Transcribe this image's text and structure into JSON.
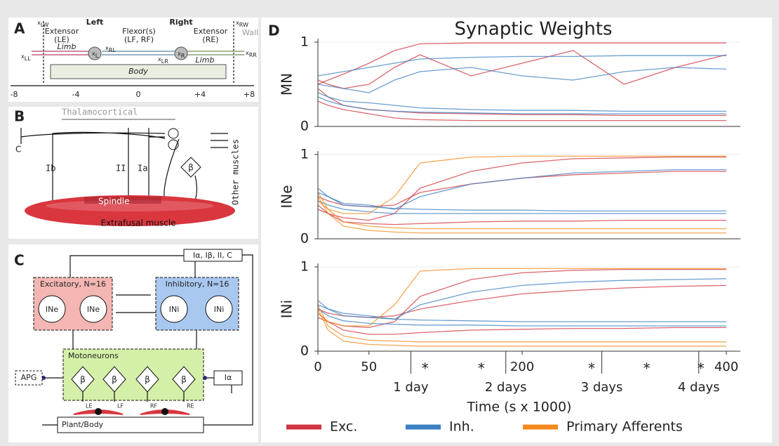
{
  "panels": {
    "A": {
      "label": "A",
      "left": "Left",
      "right": "Right",
      "left_muscle": [
        "Extensor",
        "(LE)"
      ],
      "flexor": [
        "Flexor(s)",
        "(LF, RF)"
      ],
      "right_muscle": [
        "Extensor",
        "(RE)"
      ],
      "wall": "Wall",
      "limb": "Limb",
      "body": "Body",
      "symbol": "x",
      "subscripts": [
        "LW",
        "RW",
        "LL",
        "L",
        "RL",
        "LR",
        "R",
        "RR"
      ],
      "axis": [
        "-8",
        "-4",
        "0",
        "+4",
        "+8"
      ]
    },
    "B": {
      "label": "B",
      "thalamocortical": "Thalamocortical",
      "c": "C",
      "ib": "Ib",
      "ii": "II",
      "ia": "Ia",
      "beta": "β",
      "other": "Other muscles",
      "spindle": "Spindle",
      "extrafusal": "Extrafusal muscle"
    },
    "C": {
      "label": "C",
      "inputs": "Iα, Iβ, II, C",
      "excitatory": "Excitatory, N=16",
      "inhibitory": "Inhibitory, N=16",
      "ine": "INe",
      "ini": "INi",
      "motoneurons": "Motoneurons",
      "apg": "APG",
      "ia": "Iα",
      "beta": "β",
      "muscles": [
        "LE",
        "LF",
        "RF",
        "RE"
      ],
      "plant": "Plant/Body"
    },
    "D": {
      "label": "D"
    }
  },
  "chart_data": [
    {
      "type": "line",
      "title": "Synaptic Weights",
      "ylabel": "MN",
      "xlim": [
        0,
        400
      ],
      "ylim": [
        0,
        1
      ],
      "yticks": [
        0,
        1
      ],
      "x": [
        0,
        10,
        25,
        50,
        75,
        100,
        150,
        200,
        250,
        300,
        350,
        400
      ],
      "series": [
        {
          "name": "Exc.",
          "color": "#d0343f",
          "values": [
            0.45,
            0.35,
            0.25,
            0.2,
            0.18,
            0.16,
            0.15,
            0.14,
            0.14,
            0.13,
            0.13,
            0.13
          ]
        },
        {
          "name": "Exc.",
          "color": "#d0343f",
          "values": [
            0.5,
            0.55,
            0.62,
            0.75,
            0.9,
            0.98,
            0.99,
            0.99,
            0.99,
            0.99,
            0.99,
            0.99
          ]
        },
        {
          "name": "Exc.",
          "color": "#d0343f",
          "values": [
            0.3,
            0.25,
            0.2,
            0.15,
            0.1,
            0.08,
            0.07,
            0.07,
            0.07,
            0.07,
            0.07,
            0.07
          ]
        },
        {
          "name": "Exc.",
          "color": "#d0343f",
          "values": [
            0.55,
            0.5,
            0.45,
            0.5,
            0.7,
            0.85,
            0.6,
            0.75,
            0.9,
            0.5,
            0.7,
            0.85
          ]
        },
        {
          "name": "Inh.",
          "color": "#3a7fc1",
          "values": [
            0.4,
            0.35,
            0.3,
            0.28,
            0.25,
            0.22,
            0.2,
            0.19,
            0.19,
            0.18,
            0.18,
            0.18
          ]
        },
        {
          "name": "Inh.",
          "color": "#3a7fc1",
          "values": [
            0.6,
            0.62,
            0.65,
            0.7,
            0.75,
            0.8,
            0.82,
            0.83,
            0.83,
            0.84,
            0.84,
            0.84
          ]
        },
        {
          "name": "Inh.",
          "color": "#3a7fc1",
          "values": [
            0.35,
            0.3,
            0.25,
            0.2,
            0.18,
            0.17,
            0.16,
            0.15,
            0.15,
            0.15,
            0.15,
            0.15
          ]
        },
        {
          "name": "Inh.",
          "color": "#3a7fc1",
          "values": [
            0.5,
            0.48,
            0.45,
            0.4,
            0.55,
            0.65,
            0.7,
            0.6,
            0.55,
            0.65,
            0.7,
            0.68
          ]
        }
      ]
    },
    {
      "type": "line",
      "ylabel": "INe",
      "xlim": [
        0,
        400
      ],
      "ylim": [
        0,
        1
      ],
      "yticks": [
        0,
        1
      ],
      "x": [
        0,
        10,
        25,
        50,
        75,
        100,
        150,
        200,
        250,
        300,
        350,
        400
      ],
      "series": [
        {
          "name": "Exc.",
          "color": "#d0343f",
          "values": [
            0.35,
            0.3,
            0.25,
            0.22,
            0.3,
            0.6,
            0.8,
            0.9,
            0.95,
            0.96,
            0.97,
            0.97
          ]
        },
        {
          "name": "Exc.",
          "color": "#d0343f",
          "values": [
            0.4,
            0.3,
            0.2,
            0.18,
            0.17,
            0.18,
            0.2,
            0.21,
            0.21,
            0.22,
            0.22,
            0.22
          ]
        },
        {
          "name": "Exc.",
          "color": "#d0343f",
          "values": [
            0.5,
            0.45,
            0.4,
            0.38,
            0.4,
            0.55,
            0.65,
            0.72,
            0.76,
            0.78,
            0.8,
            0.8
          ]
        },
        {
          "name": "Inh.",
          "color": "#3a7fc1",
          "values": [
            0.55,
            0.5,
            0.42,
            0.4,
            0.35,
            0.5,
            0.65,
            0.72,
            0.78,
            0.8,
            0.82,
            0.82
          ]
        },
        {
          "name": "Inh.",
          "color": "#3a7fc1",
          "values": [
            0.6,
            0.5,
            0.4,
            0.38,
            0.36,
            0.35,
            0.34,
            0.34,
            0.33,
            0.33,
            0.33,
            0.33
          ]
        },
        {
          "name": "Inh.",
          "color": "#3a7fc1",
          "values": [
            0.45,
            0.4,
            0.35,
            0.32,
            0.3,
            0.3,
            0.3,
            0.3,
            0.3,
            0.3,
            0.3,
            0.3
          ]
        },
        {
          "name": "Primary Afferents",
          "color": "#f28a1e",
          "values": [
            0.55,
            0.35,
            0.2,
            0.15,
            0.13,
            0.12,
            0.12,
            0.12,
            0.12,
            0.12,
            0.12,
            0.12
          ]
        },
        {
          "name": "Primary Afferents",
          "color": "#f28a1e",
          "values": [
            0.5,
            0.3,
            0.15,
            0.1,
            0.08,
            0.07,
            0.07,
            0.07,
            0.07,
            0.07,
            0.07,
            0.07
          ]
        },
        {
          "name": "Primary Afferents",
          "color": "#f28a1e",
          "values": [
            0.45,
            0.35,
            0.3,
            0.3,
            0.5,
            0.9,
            0.97,
            0.98,
            0.98,
            0.98,
            0.98,
            0.98
          ]
        }
      ]
    },
    {
      "type": "line",
      "ylabel": "INi",
      "xlabel": "Time (s x 1000)",
      "xlim": [
        0,
        400
      ],
      "ylim": [
        0,
        1
      ],
      "yticks": [
        0,
        1
      ],
      "xticks": [
        0,
        50,
        200,
        400
      ],
      "day_ticks": [
        {
          "value": 91,
          "label": "1 day"
        },
        {
          "value": 184,
          "label": "2 days"
        },
        {
          "value": 278,
          "label": "3 days"
        },
        {
          "value": 373,
          "label": "4 days"
        }
      ],
      "annotations": [
        {
          "x": 105,
          "text": "*"
        },
        {
          "x": 160,
          "text": "*"
        },
        {
          "x": 268,
          "text": "*"
        },
        {
          "x": 322,
          "text": "*"
        },
        {
          "x": 375,
          "text": "*"
        }
      ],
      "legend": "bottom",
      "x": [
        0,
        10,
        25,
        50,
        75,
        100,
        150,
        200,
        250,
        300,
        350,
        400
      ],
      "series": [
        {
          "name": "Exc.",
          "color": "#d0343f",
          "values": [
            0.4,
            0.35,
            0.3,
            0.28,
            0.35,
            0.65,
            0.85,
            0.93,
            0.96,
            0.97,
            0.97,
            0.97
          ]
        },
        {
          "name": "Exc.",
          "color": "#d0343f",
          "values": [
            0.45,
            0.35,
            0.25,
            0.2,
            0.2,
            0.22,
            0.25,
            0.26,
            0.27,
            0.27,
            0.28,
            0.28
          ]
        },
        {
          "name": "Exc.",
          "color": "#d0343f",
          "values": [
            0.5,
            0.45,
            0.42,
            0.4,
            0.42,
            0.5,
            0.6,
            0.68,
            0.72,
            0.75,
            0.77,
            0.78
          ]
        },
        {
          "name": "Inh.",
          "color": "#3a7fc1",
          "values": [
            0.55,
            0.5,
            0.45,
            0.42,
            0.38,
            0.55,
            0.7,
            0.78,
            0.82,
            0.84,
            0.85,
            0.86
          ]
        },
        {
          "name": "Inh.",
          "color": "#3a7fc1",
          "values": [
            0.6,
            0.5,
            0.42,
            0.4,
            0.38,
            0.37,
            0.36,
            0.35,
            0.35,
            0.35,
            0.35,
            0.35
          ]
        },
        {
          "name": "Inh.",
          "color": "#3a7fc1",
          "values": [
            0.5,
            0.42,
            0.36,
            0.33,
            0.32,
            0.31,
            0.31,
            0.3,
            0.3,
            0.3,
            0.3,
            0.3
          ]
        },
        {
          "name": "Primary Afferents",
          "color": "#f28a1e",
          "values": [
            0.55,
            0.3,
            0.18,
            0.13,
            0.12,
            0.11,
            0.11,
            0.11,
            0.11,
            0.11,
            0.11,
            0.11
          ]
        },
        {
          "name": "Primary Afferents",
          "color": "#f28a1e",
          "values": [
            0.5,
            0.25,
            0.12,
            0.08,
            0.07,
            0.06,
            0.06,
            0.06,
            0.06,
            0.06,
            0.06,
            0.06
          ]
        },
        {
          "name": "Primary Afferents",
          "color": "#f28a1e",
          "values": [
            0.45,
            0.35,
            0.3,
            0.3,
            0.55,
            0.95,
            0.98,
            0.98,
            0.98,
            0.98,
            0.98,
            0.98
          ]
        }
      ]
    }
  ]
}
